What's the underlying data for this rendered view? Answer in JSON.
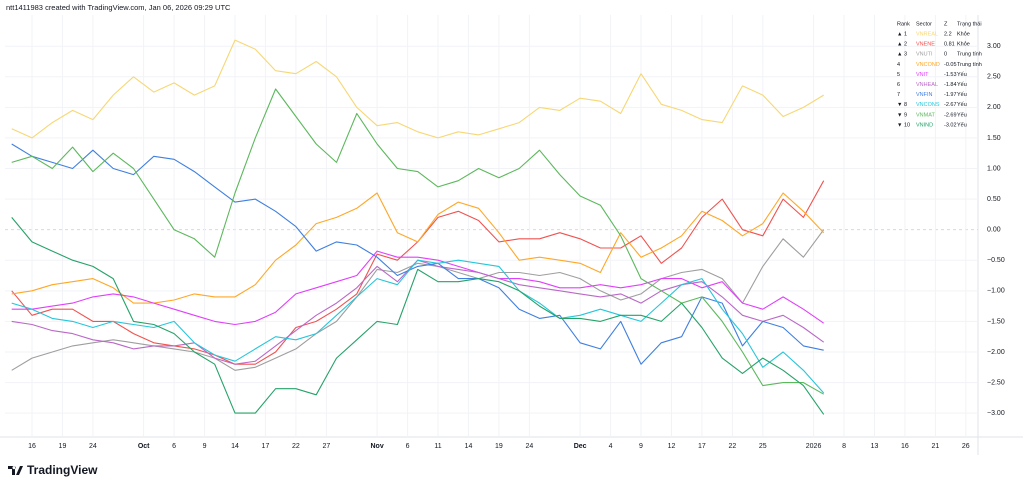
{
  "attribution": "ntt1411983 created with TradingView.com, Jan 06, 2026 09:29 UTC",
  "brand": "TradingView",
  "chart_data": {
    "type": "line",
    "grid": true,
    "legend": "top-right",
    "legend_headers": [
      "Rank",
      "Sector",
      "Z",
      "Trạng thái"
    ],
    "legend_rows": [
      {
        "rank": "▲ 1",
        "z": 2.2,
        "status": "Khỏe"
      },
      {
        "rank": "▲ 2",
        "z": 0.81,
        "status": "Khỏe"
      },
      {
        "rank": "▲ 3",
        "z": 0,
        "status": "Trung tính"
      },
      {
        "rank": "4",
        "z": -0.05,
        "status": "Trung tính"
      },
      {
        "rank": "5",
        "z": -1.53,
        "status": "Yếu"
      },
      {
        "rank": "6",
        "z": -1.84,
        "status": "Yếu"
      },
      {
        "rank": "7",
        "z": -1.97,
        "status": "Yếu"
      },
      {
        "rank": "▼ 8",
        "z": -2.67,
        "status": "Yếu"
      },
      {
        "rank": "▼ 9",
        "z": -2.69,
        "status": "Yếu"
      },
      {
        "rank": "▼ 10",
        "z": -3.02,
        "status": "Yếu"
      }
    ],
    "xlim": [
      -0.66,
      95.2
    ],
    "ylim": [
      -3.39,
      3.51
    ],
    "xticks": [
      {
        "value": 2,
        "label": "16"
      },
      {
        "value": 5,
        "label": "19"
      },
      {
        "value": 8,
        "label": "24"
      },
      {
        "value": 13,
        "label": "Oct"
      },
      {
        "value": 16,
        "label": "6"
      },
      {
        "value": 19,
        "label": "9"
      },
      {
        "value": 22,
        "label": "14"
      },
      {
        "value": 25,
        "label": "17"
      },
      {
        "value": 28,
        "label": "22"
      },
      {
        "value": 31,
        "label": "27"
      },
      {
        "value": 36,
        "label": "Nov"
      },
      {
        "value": 39,
        "label": "6"
      },
      {
        "value": 42,
        "label": "11"
      },
      {
        "value": 45,
        "label": "14"
      },
      {
        "value": 48,
        "label": "19"
      },
      {
        "value": 51,
        "label": "24"
      },
      {
        "value": 56,
        "label": "Dec"
      },
      {
        "value": 59,
        "label": "4"
      },
      {
        "value": 62,
        "label": "9"
      },
      {
        "value": 65,
        "label": "12"
      },
      {
        "value": 68,
        "label": "17"
      },
      {
        "value": 71,
        "label": "22"
      },
      {
        "value": 74,
        "label": "25"
      },
      {
        "value": 79,
        "label": "2026"
      },
      {
        "value": 82,
        "label": "8"
      },
      {
        "value": 85,
        "label": "13"
      },
      {
        "value": 88,
        "label": "16"
      },
      {
        "value": 91,
        "label": "21"
      },
      {
        "value": 94,
        "label": "26"
      }
    ],
    "yticks": [
      {
        "value": 3,
        "label": "3.00"
      },
      {
        "value": 2.5,
        "label": "2.50"
      },
      {
        "value": 2,
        "label": "2.00"
      },
      {
        "value": 1.5,
        "label": "1.50"
      },
      {
        "value": 1,
        "label": "1.00"
      },
      {
        "value": 0.5,
        "label": "0.50"
      },
      {
        "value": 0,
        "label": "0.00"
      },
      {
        "value": -0.5,
        "label": "−0.50"
      },
      {
        "value": -1,
        "label": "−1.00"
      },
      {
        "value": -1.5,
        "label": "−1.50"
      },
      {
        "value": -2,
        "label": "−2.00"
      },
      {
        "value": -2.5,
        "label": "−2.50"
      },
      {
        "value": -3,
        "label": "−3.00"
      }
    ],
    "x": [
      0,
      2,
      4,
      6,
      8,
      10,
      12,
      14,
      16,
      18,
      20,
      22,
      24,
      26,
      28,
      30,
      32,
      34,
      36,
      38,
      40,
      42,
      44,
      46,
      48,
      50,
      52,
      54,
      56,
      58,
      60,
      62,
      64,
      66,
      68,
      70,
      72,
      74,
      76,
      78,
      80
    ],
    "series": [
      {
        "name": "VNREAL",
        "color": "#f7d774",
        "values": [
          1.65,
          1.5,
          1.75,
          1.95,
          1.8,
          2.2,
          2.5,
          2.25,
          2.4,
          2.2,
          2.35,
          3.1,
          2.95,
          2.6,
          2.55,
          2.75,
          2.5,
          2.0,
          1.7,
          1.75,
          1.6,
          1.5,
          1.6,
          1.55,
          1.65,
          1.75,
          2.0,
          1.95,
          2.15,
          2.1,
          1.9,
          2.55,
          2.05,
          1.95,
          1.8,
          1.75,
          2.35,
          2.2,
          1.85,
          2.0,
          2.2
        ]
      },
      {
        "name": "VNENE",
        "color": "#ef5350",
        "values": [
          -1.0,
          -1.4,
          -1.3,
          -1.3,
          -1.5,
          -1.5,
          -1.7,
          -1.85,
          -1.9,
          -1.95,
          -2.05,
          -2.2,
          -2.2,
          -2.0,
          -1.6,
          -1.5,
          -1.3,
          -1.05,
          -0.4,
          -0.5,
          -0.2,
          0.2,
          0.3,
          0.15,
          -0.2,
          -0.15,
          -0.15,
          -0.05,
          -0.15,
          -0.3,
          -0.3,
          -0.1,
          -0.55,
          -0.3,
          0.2,
          0.5,
          0.0,
          -0.1,
          0.5,
          0.2,
          0.8
        ]
      },
      {
        "name": "VNUTI",
        "color": "#9e9e9e",
        "values": [
          -2.3,
          -2.1,
          -2.0,
          -1.9,
          -1.85,
          -1.8,
          -1.85,
          -1.9,
          -1.95,
          -2.0,
          -2.1,
          -2.3,
          -2.25,
          -2.1,
          -1.95,
          -1.7,
          -1.5,
          -1.1,
          -0.65,
          -0.7,
          -0.55,
          -0.6,
          -0.7,
          -0.8,
          -0.7,
          -0.7,
          -0.75,
          -0.7,
          -0.8,
          -1.0,
          -1.15,
          -1.05,
          -0.8,
          -0.7,
          -0.65,
          -0.8,
          -1.2,
          -0.6,
          -0.15,
          -0.45,
          0.0
        ]
      },
      {
        "name": "VNCOND",
        "color": "#ffa726",
        "values": [
          -1.05,
          -1.0,
          -0.9,
          -0.85,
          -0.8,
          -0.95,
          -1.2,
          -1.2,
          -1.15,
          -1.05,
          -1.1,
          -1.1,
          -0.9,
          -0.5,
          -0.25,
          0.1,
          0.2,
          0.35,
          0.6,
          -0.05,
          -0.2,
          0.25,
          0.45,
          0.35,
          -0.05,
          -0.5,
          -0.45,
          -0.5,
          -0.55,
          -0.7,
          -0.05,
          -0.45,
          -0.3,
          -0.1,
          0.3,
          0.15,
          -0.1,
          0.1,
          0.6,
          0.3,
          -0.05
        ]
      },
      {
        "name": "VNIT",
        "color": "#e040fb",
        "values": [
          -1.3,
          -1.3,
          -1.25,
          -1.2,
          -1.1,
          -1.05,
          -1.1,
          -1.2,
          -1.3,
          -1.4,
          -1.5,
          -1.55,
          -1.5,
          -1.35,
          -1.05,
          -0.95,
          -0.85,
          -0.75,
          -0.35,
          -0.45,
          -0.45,
          -0.5,
          -0.6,
          -0.7,
          -0.8,
          -0.8,
          -0.85,
          -0.95,
          -0.95,
          -0.9,
          -0.95,
          -0.9,
          -0.8,
          -0.8,
          -0.95,
          -0.85,
          -1.2,
          -1.3,
          -1.1,
          -1.3,
          -1.53
        ]
      },
      {
        "name": "VNHEAL",
        "color": "#ba68c8",
        "values": [
          -1.5,
          -1.55,
          -1.65,
          -1.7,
          -1.8,
          -1.85,
          -1.95,
          -1.9,
          -1.9,
          -1.85,
          -2.1,
          -2.2,
          -2.15,
          -1.9,
          -1.65,
          -1.4,
          -1.2,
          -0.95,
          -0.6,
          -0.85,
          -0.5,
          -0.6,
          -0.65,
          -0.7,
          -0.8,
          -0.9,
          -0.95,
          -1.0,
          -1.05,
          -1.1,
          -1.05,
          -1.2,
          -1.0,
          -0.9,
          -0.85,
          -1.1,
          -1.4,
          -1.5,
          -1.4,
          -1.6,
          -1.84
        ]
      },
      {
        "name": "VNFIN",
        "color": "#3f7fe0",
        "values": [
          1.4,
          1.2,
          1.1,
          1.0,
          1.3,
          1.0,
          0.9,
          1.2,
          1.15,
          0.95,
          0.7,
          0.45,
          0.5,
          0.3,
          0.05,
          -0.35,
          -0.2,
          -0.25,
          -0.45,
          -0.75,
          -0.6,
          -0.55,
          -0.8,
          -0.8,
          -0.95,
          -1.3,
          -1.45,
          -1.4,
          -1.85,
          -1.95,
          -1.5,
          -2.2,
          -1.85,
          -1.75,
          -1.1,
          -1.2,
          -1.9,
          -1.5,
          -1.6,
          -1.9,
          -1.97
        ]
      },
      {
        "name": "VNCONS",
        "color": "#26c6da",
        "values": [
          -1.2,
          -1.3,
          -1.45,
          -1.5,
          -1.6,
          -1.5,
          -1.55,
          -1.6,
          -1.5,
          -1.85,
          -2.05,
          -2.15,
          -1.95,
          -1.75,
          -1.8,
          -1.7,
          -1.4,
          -1.1,
          -0.8,
          -0.9,
          -0.5,
          -0.55,
          -0.5,
          -0.55,
          -0.6,
          -1.0,
          -1.2,
          -1.45,
          -1.4,
          -1.3,
          -1.4,
          -1.5,
          -1.2,
          -0.9,
          -0.8,
          -1.3,
          -1.7,
          -2.25,
          -2.0,
          -2.3,
          -2.67
        ]
      },
      {
        "name": "VNMAT",
        "color": "#5cb85c",
        "values": [
          1.1,
          1.2,
          1.0,
          1.35,
          0.95,
          1.25,
          1.0,
          0.5,
          0.0,
          -0.15,
          -0.45,
          0.6,
          1.5,
          2.3,
          1.85,
          1.4,
          1.1,
          1.9,
          1.4,
          1.0,
          0.95,
          0.7,
          0.8,
          1.0,
          0.85,
          1.0,
          1.3,
          0.9,
          0.55,
          0.4,
          -0.1,
          -0.8,
          -1.0,
          -1.2,
          -1.1,
          -1.5,
          -2.0,
          -2.55,
          -2.5,
          -2.5,
          -2.69
        ]
      },
      {
        "name": "VNIND",
        "color": "#26a269",
        "values": [
          0.2,
          -0.2,
          -0.35,
          -0.5,
          -0.6,
          -0.8,
          -1.5,
          -1.55,
          -1.7,
          -2.0,
          -2.2,
          -3.0,
          -3.0,
          -2.6,
          -2.6,
          -2.7,
          -2.1,
          -1.8,
          -1.5,
          -1.55,
          -0.65,
          -0.85,
          -0.85,
          -0.8,
          -0.85,
          -1.0,
          -1.25,
          -1.45,
          -1.45,
          -1.5,
          -1.4,
          -1.4,
          -1.5,
          -1.2,
          -1.6,
          -2.1,
          -2.35,
          -2.1,
          -2.3,
          -2.55,
          -3.02
        ]
      }
    ]
  }
}
